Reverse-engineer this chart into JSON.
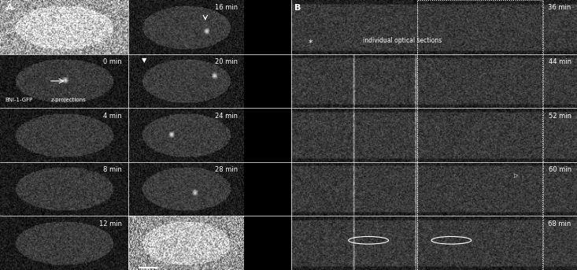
{
  "fig_width": 7.33,
  "fig_height": 3.43,
  "bg_color": "#000000",
  "text_color": "#ffffff",
  "panel_A_label": "A",
  "panel_B_label": "B",
  "panel_A_subtext1": "BNI-1-GFP",
  "panel_A_subtext2": "z-projections",
  "panel_B_subtext": "individual optical sections",
  "times_left": [
    "0 min",
    "4 min",
    "8 min",
    "12 min"
  ],
  "times_right_A": [
    "16 min",
    "20 min",
    "24 min",
    "28 min"
  ],
  "times_right_B": [
    "36 min",
    "44 min",
    "52 min",
    "60 min",
    "68 min"
  ],
  "gray_low": 20,
  "gray_mid": 55,
  "gray_high": 100,
  "noise_scale": 25
}
